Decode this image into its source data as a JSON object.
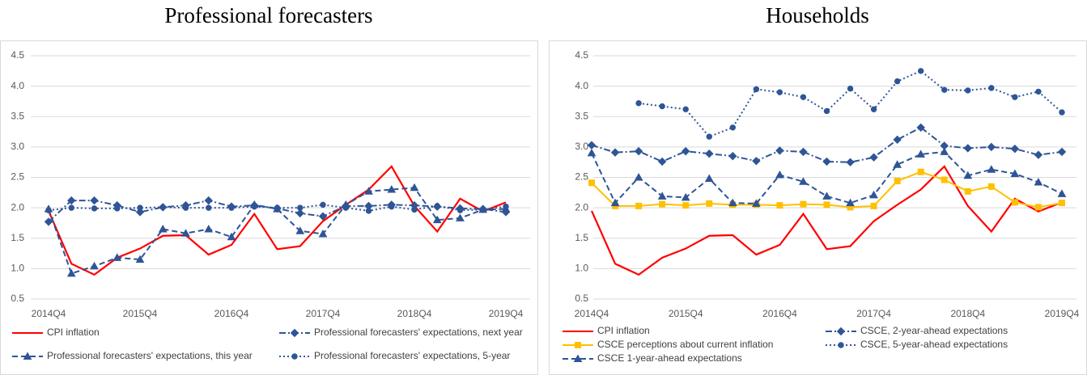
{
  "chart_data": [
    {
      "type": "line",
      "title": "Professional forecasters",
      "categories": [
        "2014Q4",
        null,
        null,
        null,
        "2015Q4",
        null,
        null,
        null,
        "2016Q4",
        null,
        null,
        null,
        "2017Q4",
        null,
        null,
        null,
        "2018Q4",
        null,
        null,
        null,
        "2019Q4"
      ],
      "ylim": [
        0.5,
        4.5
      ],
      "yticks": [
        0.5,
        {
          "value": 1,
          "label": "1.0"
        },
        1.5,
        {
          "value": 2,
          "label": "2.0"
        },
        2.5,
        {
          "value": 3,
          "label": "3.0"
        },
        3.5,
        {
          "value": 4,
          "label": "4.0"
        },
        4.5
      ],
      "grid": true,
      "series": [
        {
          "name": "CPI inflation",
          "color": "#ff0000",
          "line_style": "solid",
          "marker": "none",
          "values": [
            1.95,
            1.08,
            0.9,
            1.18,
            1.33,
            1.54,
            1.55,
            1.23,
            1.39,
            1.9,
            1.32,
            1.37,
            1.78,
            2.05,
            2.3,
            2.68,
            2.03,
            1.61,
            2.15,
            1.94,
            2.09
          ]
        },
        {
          "name": "Professional forecasters' expectations, next year",
          "color": "#2f5597",
          "line_style": "dashdot",
          "marker": "diamond",
          "values": [
            1.77,
            2.12,
            2.12,
            2.04,
            1.93,
            2.01,
            2.04,
            2.12,
            2.02,
            2.04,
            1.99,
            1.91,
            1.86,
            2.03,
            2.03,
            2.05,
            2.04,
            2.02,
            1.99,
            1.98,
            1.93
          ]
        },
        {
          "name": "Professional forecasters' expectations, this year",
          "color": "#2f5597",
          "line_style": "dashed",
          "marker": "triangle",
          "values": [
            1.98,
            0.92,
            1.04,
            1.18,
            1.15,
            1.65,
            1.58,
            1.65,
            1.52,
            2.05,
            1.98,
            1.62,
            1.57,
            2.05,
            2.27,
            2.3,
            2.33,
            1.8,
            1.83,
            1.97,
            1.98
          ]
        },
        {
          "name": "Professional forecasters' expectations, 5-year",
          "color": "#2f5597",
          "line_style": "dotted",
          "marker": "circle",
          "values": [
            1.96,
            2.0,
            1.99,
            1.99,
            2.0,
            2.01,
            2.0,
            2.0,
            2.0,
            2.02,
            2.0,
            2.0,
            2.05,
            2.0,
            1.95,
            2.02,
            1.97,
            2.03,
            1.96,
            1.97,
            2.02
          ]
        }
      ]
    },
    {
      "type": "line",
      "title": "Households",
      "categories": [
        "2014Q4",
        null,
        null,
        null,
        "2015Q4",
        null,
        null,
        null,
        "2016Q4",
        null,
        null,
        null,
        "2017Q4",
        null,
        null,
        null,
        "2018Q4",
        null,
        null,
        null,
        "2019Q4"
      ],
      "ylim": [
        0.5,
        4.5
      ],
      "yticks": [
        0.5,
        {
          "value": 1,
          "label": "1.0"
        },
        1.5,
        {
          "value": 2,
          "label": "2.0"
        },
        2.5,
        {
          "value": 3,
          "label": "3.0"
        },
        3.5,
        {
          "value": 4,
          "label": "4.0"
        },
        4.5
      ],
      "grid": true,
      "series": [
        {
          "name": "CPI inflation",
          "color": "#ff0000",
          "line_style": "solid",
          "marker": "none",
          "values": [
            1.95,
            1.08,
            0.9,
            1.18,
            1.33,
            1.54,
            1.55,
            1.23,
            1.39,
            1.9,
            1.32,
            1.37,
            1.78,
            2.05,
            2.3,
            2.68,
            2.03,
            1.61,
            2.15,
            1.94,
            2.09
          ]
        },
        {
          "name": "CSCE perceptions about current inflation",
          "color": "#ffc000",
          "line_style": "solid",
          "marker": "square",
          "values": [
            2.41,
            2.03,
            2.03,
            2.06,
            2.04,
            2.07,
            2.05,
            2.05,
            2.04,
            2.06,
            2.05,
            2.01,
            2.03,
            2.44,
            2.59,
            2.46,
            2.27,
            2.35,
            2.09,
            2.01,
            2.08
          ]
        },
        {
          "name": "CSCE 1-year-ahead expectations",
          "color": "#2f5597",
          "line_style": "dashed",
          "marker": "triangle",
          "values": [
            2.9,
            2.08,
            2.5,
            2.19,
            2.17,
            2.48,
            2.08,
            2.07,
            2.54,
            2.43,
            2.19,
            2.08,
            2.21,
            2.71,
            2.88,
            2.92,
            2.53,
            2.63,
            2.56,
            2.42,
            2.23
          ]
        },
        {
          "name": "CSCE, 2-year-ahead expectations",
          "color": "#2f5597",
          "line_style": "dashdot",
          "marker": "diamond",
          "values": [
            3.03,
            2.91,
            2.93,
            2.76,
            2.93,
            2.89,
            2.85,
            2.77,
            2.94,
            2.92,
            2.76,
            2.75,
            2.83,
            3.12,
            3.32,
            3.02,
            2.98,
            3.0,
            2.97,
            2.87,
            2.92
          ]
        },
        {
          "name": "CSCE, 5-year-ahead expectations",
          "color": "#2f5597",
          "line_style": "dotted",
          "marker": "circle",
          "values": [
            null,
            null,
            3.72,
            3.67,
            3.62,
            3.17,
            3.32,
            3.95,
            3.9,
            3.82,
            3.59,
            3.96,
            3.62,
            4.08,
            4.25,
            3.94,
            3.93,
            3.97,
            3.82,
            3.91,
            3.57
          ]
        }
      ]
    }
  ]
}
